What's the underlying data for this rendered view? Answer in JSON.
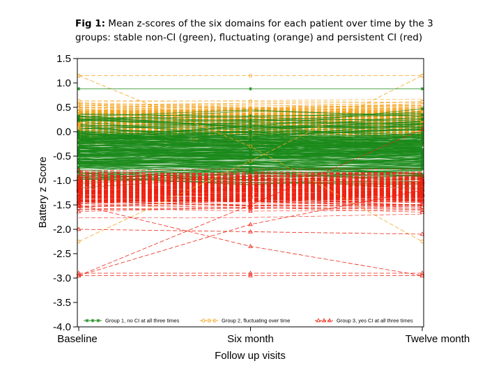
{
  "caption": {
    "label": "Fig 1:",
    "text": " Mean z-scores of the six domains for each patient over time by the 3 groups: stable non-CI (green), fluctuating (orange) and persistent CI (red)"
  },
  "chart_data": {
    "type": "line",
    "title": "",
    "xlabel": "Follow up visits",
    "ylabel": "Battery z Score",
    "categories": [
      "Baseline",
      "Six month",
      "Twelve month"
    ],
    "ylim": [
      -4.0,
      1.5
    ],
    "yticks": [
      1.5,
      1.0,
      0.5,
      0.0,
      -0.5,
      -1.0,
      -1.5,
      -2.0,
      -2.5,
      -3.0,
      -3.5,
      -4.0
    ],
    "ytick_labels": [
      "1.5",
      "1.0",
      "0.5",
      "0.0",
      "-0.5",
      "-1.0",
      "-1.5",
      "-2.0",
      "-2.5",
      "-3.0",
      "-3.5",
      "-4.0"
    ],
    "grid": false,
    "legend_position": "bottom-inside",
    "series": [
      {
        "name": "Group 1, no CI at all three times",
        "color": "#1a8a1a",
        "marker": "star",
        "line_style": "solid",
        "values_range": [
          -1.2,
          0.9
        ]
      },
      {
        "name": "Group 2, fluctuating over time",
        "color": "#f5a623",
        "marker": "circle",
        "line_style": "dashed",
        "values_range": [
          -2.3,
          1.15
        ]
      },
      {
        "name": "Group 3, yes CI at all three times",
        "color": "#ee2211",
        "marker": "triangle",
        "line_style": "dashed",
        "values_range": [
          -2.95,
          0.05
        ]
      }
    ]
  }
}
